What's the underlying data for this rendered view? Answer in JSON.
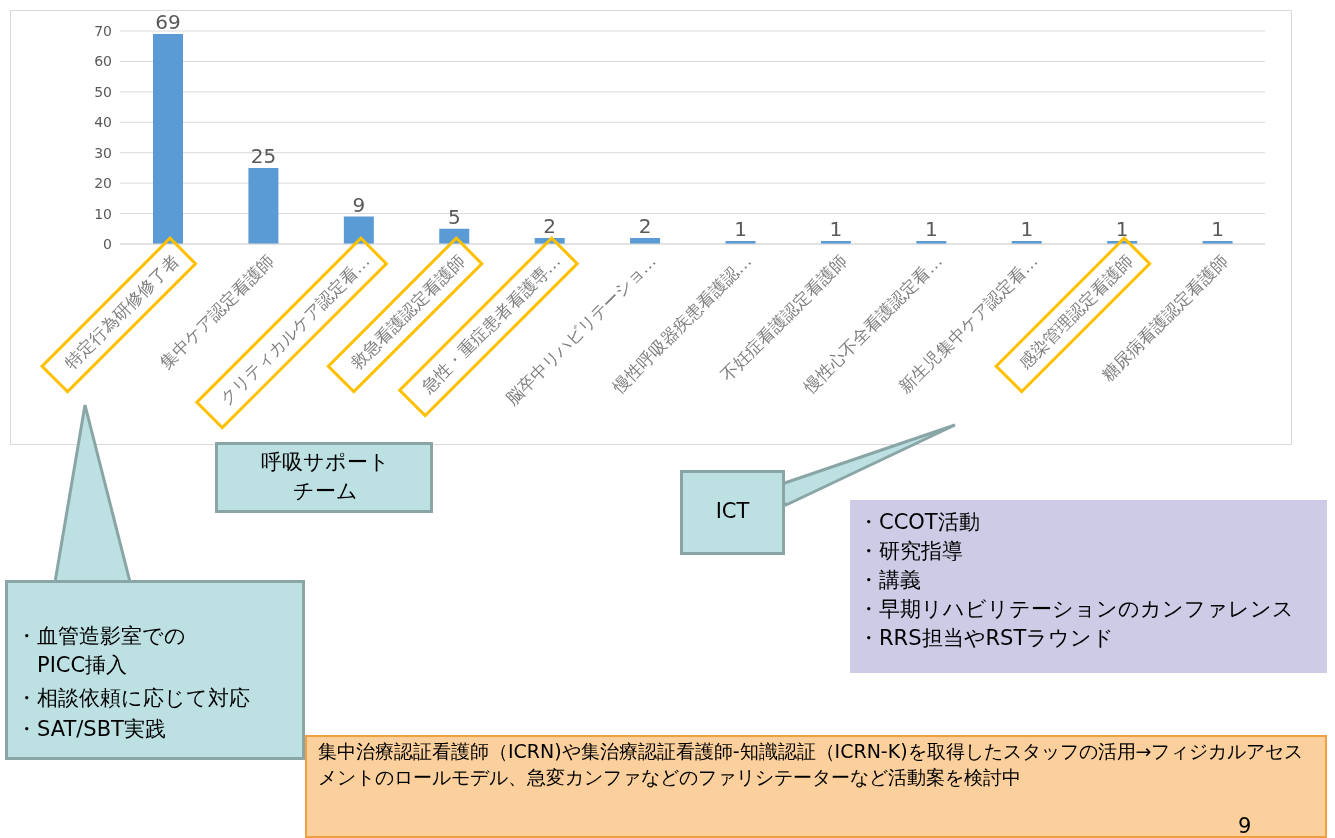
{
  "chart_data": {
    "type": "bar",
    "categories": [
      "特定行為研修修了者",
      "集中ケア認定看護師",
      "クリティカルケア認定看…",
      "救急看護認定看護師",
      "急性・重症患者看護専…",
      "脳卒中リハビリテーショ…",
      "慢性呼吸器疾患看護認…",
      "不妊症看護認定看護師",
      "慢性心不全看護認定看…",
      "新生児集中ケア認定看…",
      "感染管理認定看護師",
      "糖尿病看護認定看護師"
    ],
    "values": [
      69,
      25,
      9,
      5,
      2,
      2,
      1,
      1,
      1,
      1,
      1,
      1
    ],
    "color": "#5b9bd5",
    "ylim": [
      0,
      70
    ],
    "yticks": [
      0,
      10,
      20,
      30,
      40,
      50,
      60,
      70
    ],
    "grid": "y",
    "data_labels": true,
    "annotations": [
      "呼吸サポートチーム",
      "ICT",
      "・CCOT活動",
      "・研究指導",
      "・講義",
      "・早期リハビリテーションのカンファレンス",
      "・RRS担当やRSTラウンド",
      "・血管造影室でのPICC挿入",
      "・相談依頼に応じて対応",
      "・SAT/SBT実践",
      "集中治療認証看護師（ICRN)や集治療認証看護師-知識認証（ICRN-K)を取得したスタッフの活用→フィジカルアセスメントのロールモデル、急変カンファなどのファリシテーターなど活動案を検討中",
      "9"
    ]
  }
}
